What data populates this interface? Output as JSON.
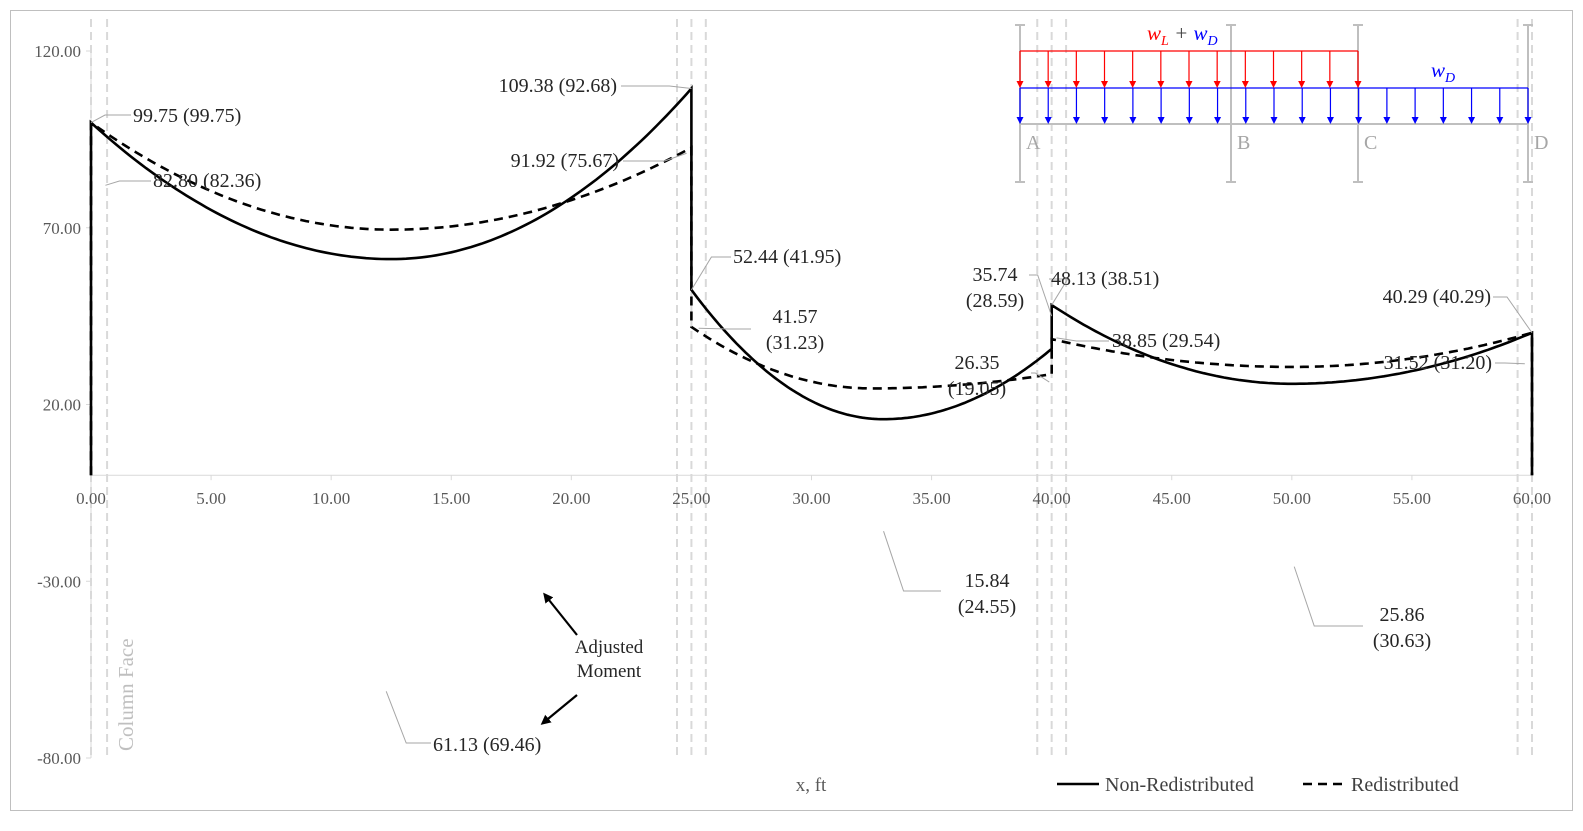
{
  "chart_data": {
    "type": "line",
    "xlabel": "x, ft",
    "x_ticks": [
      0,
      5,
      10,
      15,
      20,
      25,
      30,
      35,
      40,
      45,
      50,
      55,
      60
    ],
    "y_ticks": [
      120,
      70,
      20,
      -30,
      -80
    ],
    "xlim": [
      0,
      60
    ],
    "ylim": [
      -80,
      120
    ],
    "grid": false,
    "legend_position": "bottom-right",
    "series": [
      {
        "name": "Non-Redistributed",
        "style": "solid",
        "color": "#000000",
        "spans": [
          {
            "x_start": 0,
            "x_end": 25,
            "x_min": 12.5,
            "m_start": 99.75,
            "m_end": 109.38,
            "m_min": -61.13
          },
          {
            "x_start": 25,
            "x_end": 40,
            "x_min": 33,
            "m_start": 52.44,
            "m_end": 35.74,
            "m_min": -15.84
          },
          {
            "x_start": 40,
            "x_end": 60,
            "x_min": 50,
            "m_start": 48.13,
            "m_end": 40.29,
            "m_min": -25.86
          }
        ]
      },
      {
        "name": "Redistributed",
        "style": "dashed",
        "color": "#000000",
        "spans": [
          {
            "x_start": 0,
            "x_end": 25,
            "x_min": 12.5,
            "m_start": 99.75,
            "m_end": 92.68,
            "m_min": -69.46
          },
          {
            "x_start": 25,
            "x_end": 40,
            "x_min": 32.5,
            "m_start": 41.95,
            "m_end": 28.59,
            "m_min": -24.55
          },
          {
            "x_start": 40,
            "x_end": 60,
            "x_min": 50,
            "m_start": 38.51,
            "m_end": 40.29,
            "m_min": -30.63
          }
        ]
      }
    ],
    "gridline_x": [
      0,
      0.67,
      24.4,
      25,
      25.6,
      39.4,
      40,
      40.6,
      59.4,
      60
    ],
    "annotations": [
      "99.75 (99.75)",
      "82.80 (82.36)",
      "109.38 (92.68)",
      "91.92 (75.67)",
      "52.44 (41.95)",
      [
        "41.57",
        "(31.23)"
      ],
      [
        "35.74",
        "(28.59)"
      ],
      "48.13 (38.51)",
      "38.85 (29.54)",
      [
        "26.35",
        "(19.05)"
      ],
      "40.29 (40.29)",
      "31.52 (31.20)",
      [
        "15.84",
        "(24.55)"
      ],
      [
        "25.86",
        "(30.63)"
      ],
      "61.13 (69.46)"
    ],
    "adjusted_label": [
      "Adjusted",
      "Moment"
    ],
    "column_face_label": "Column Face",
    "inset": {
      "load_left": [
        "w",
        "L",
        "+",
        "w",
        "D"
      ],
      "load_right": [
        "w",
        "D"
      ],
      "supports": [
        "A",
        "B",
        "C",
        "D"
      ],
      "live_color": "#ff0000",
      "dead_color": "#0000ff"
    }
  }
}
